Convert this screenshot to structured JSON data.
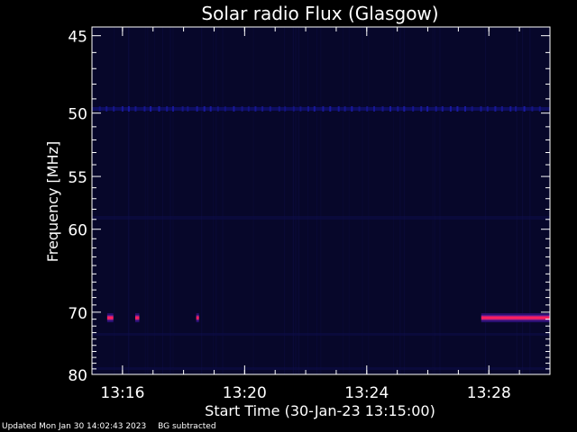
{
  "chart_data": {
    "type": "heatmap",
    "title": "Solar radio Flux (Glasgow)",
    "xlabel": "Start Time (30-Jan-23 13:15:00)",
    "ylabel": "Frequency [MHz]",
    "y_ticks": [
      45,
      50,
      55,
      60,
      70,
      80
    ],
    "y_tick_labels": [
      "45",
      "50",
      "55",
      "60",
      "70",
      "80"
    ],
    "ylim": [
      44.5,
      80
    ],
    "x_ticks": [
      "13:16",
      "13:20",
      "13:24",
      "13:28"
    ],
    "xlim": [
      "13:15:00",
      "13:30:00"
    ],
    "y_scale": "reciprocal (1/frequency)",
    "background_color": "#000000",
    "axis_color": "#ffffff",
    "field_color": "#07072a",
    "features": [
      {
        "kind": "band",
        "freq_mhz": 49.7,
        "start": "13:15:00",
        "end": "13:30:00",
        "color": "#1a1aa0",
        "intensity": "low"
      },
      {
        "kind": "burst",
        "freq_mhz": 70.8,
        "start": "13:15:30",
        "end": "13:15:42",
        "color": "#e01050",
        "intensity": "high"
      },
      {
        "kind": "burst",
        "freq_mhz": 70.8,
        "start": "13:16:25",
        "end": "13:16:33",
        "color": "#e01050",
        "intensity": "high"
      },
      {
        "kind": "burst",
        "freq_mhz": 70.8,
        "start": "13:18:25",
        "end": "13:18:30",
        "color": "#c01060",
        "intensity": "medium"
      },
      {
        "kind": "burst",
        "freq_mhz": 70.8,
        "start": "13:27:45",
        "end": "13:30:00",
        "color": "#e01050",
        "intensity": "high"
      }
    ]
  },
  "footer": {
    "updated": "Updated Mon Jan 30 14:02:43 2023",
    "note": "BG subtracted"
  }
}
